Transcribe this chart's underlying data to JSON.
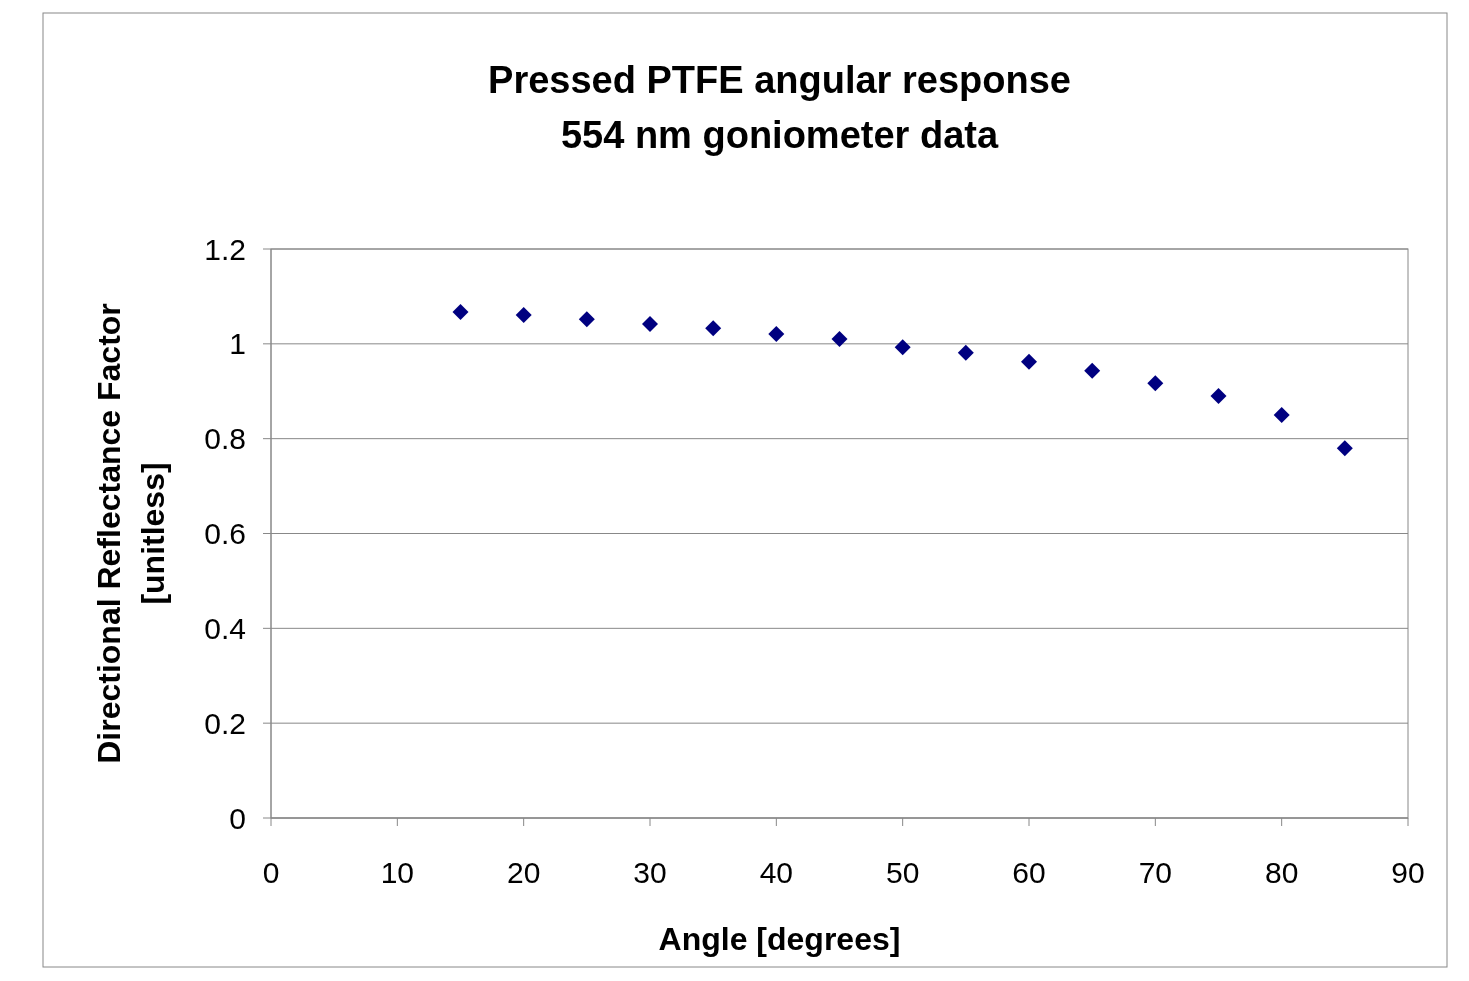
{
  "chart_data": {
    "type": "scatter",
    "title": "Pressed PTFE angular response\n554 nm goniometer data",
    "xlabel": "Angle [degrees]",
    "ylabel": "Directional Reflectance Factor\n[unitless]",
    "x": [
      15,
      20,
      25,
      30,
      35,
      40,
      45,
      50,
      55,
      60,
      65,
      70,
      75,
      80,
      85
    ],
    "series": [
      {
        "color": "#000080",
        "values": [
          1.067,
          1.061,
          1.052,
          1.042,
          1.033,
          1.021,
          1.01,
          0.993,
          0.981,
          0.962,
          0.943,
          0.917,
          0.89,
          0.85,
          0.78
        ]
      }
    ],
    "xlim": [
      0,
      90
    ],
    "xticks": [
      0,
      10,
      20,
      30,
      40,
      50,
      60,
      70,
      80,
      90
    ],
    "ylim": [
      0,
      1.2
    ],
    "yticks": [
      0,
      0.2,
      0.4,
      0.6,
      0.8,
      1,
      1.2
    ],
    "grid": "y",
    "marker": "diamond"
  }
}
